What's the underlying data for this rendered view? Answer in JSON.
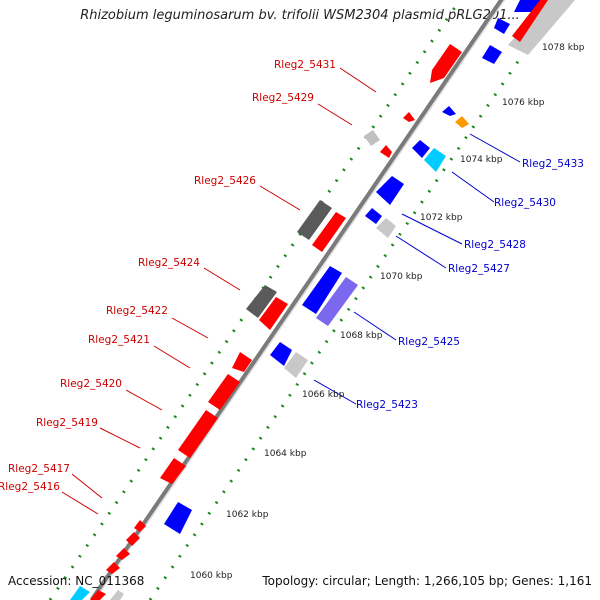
{
  "title": "Rhizobium leguminosarum bv. trifolii WSM2304 plasmid pRLG201...",
  "footer": {
    "accession": "Accession: NC_011368",
    "stats": "Topology: circular; Length: 1,266,105 bp; Genes: 1,161"
  },
  "scale_labels": [
    "1060 kbp",
    "1062 kbp",
    "1064 kbp",
    "1066 kbp",
    "1068 kbp",
    "1070 kbp",
    "1072 kbp",
    "1074 kbp",
    "1076 kbp",
    "1078 kbp"
  ],
  "left_labels": [
    "Rleg2_5431",
    "Rleg2_5429",
    "Rleg2_5426",
    "Rleg2_5424",
    "Rleg2_5422",
    "Rleg2_5421",
    "Rleg2_5420",
    "Rleg2_5419",
    "Rleg2_5417",
    "Rleg2_5416"
  ],
  "right_labels": [
    "Rleg2_5433",
    "Rleg2_5430",
    "Rleg2_5428",
    "Rleg2_5427",
    "Rleg2_5425",
    "Rleg2_5423"
  ],
  "colors": {
    "forward_gene": "#ff0000",
    "reverse_gene": "#0000ff",
    "grey_gene": "#b4b4b4",
    "dark_gene": "#5a5a5a",
    "cyan_gene": "#00ccff",
    "purple_gene": "#7b68ee",
    "orange_gene": "#ff9900",
    "left_label": "#cc0000",
    "right_label": "#0000cc",
    "tick": "#1a8a1a"
  }
}
